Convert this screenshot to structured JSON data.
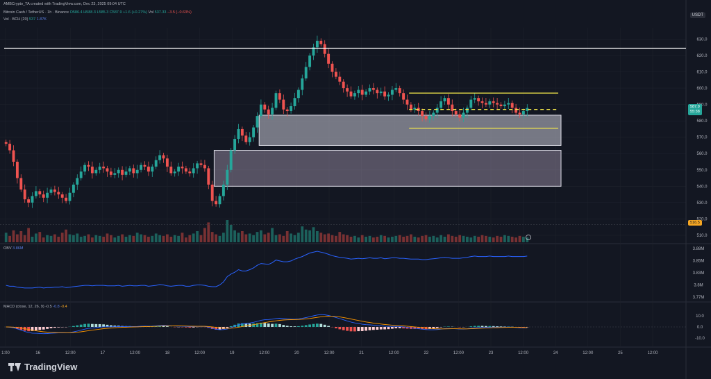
{
  "header": {
    "created_by": "AMBCrypto_TA created with TradingView.com, Dec 23, 2025 09:04 UTC",
    "symbol": "Bitcoin Cash / TetherUS · 1h · Binance",
    "open": "O586.4",
    "high": "H588.3",
    "low": "L585.3",
    "close": "C587.9",
    "change": "+1.6 (+0.27%)",
    "vol_label": "Vol",
    "vol_value": "537.33",
    "vol_change": "−3.5 (−0.63%)",
    "vol_indicator": "Vol · BCH (20)",
    "vol_v1": "537",
    "vol_v2": "1.87K",
    "currency": "USDT"
  },
  "price_badge": {
    "price": "587.9",
    "countdown": "55:38"
  },
  "low_badge": "516.5",
  "obv_label": "OBV",
  "obv_value": "3.86M",
  "macd_label": "MACD (close, 12, 26, 9)",
  "macd_v1": "-0.5",
  "macd_v2": "-0.8",
  "macd_v3": "-0.4",
  "brand": "TradingView",
  "colors": {
    "up": "#26a69a",
    "down": "#ef5350",
    "background": "#131722",
    "gridline": "#1e222d",
    "yellow": "#f5e94a",
    "white_line": "#ffffff",
    "zone": "#b3b3c4",
    "obv": "#2962ff",
    "macd": "#2962ff",
    "signal": "#ff9800"
  },
  "chart_data": {
    "type": "candlestick",
    "price_axis": {
      "ticks": [
        510,
        520,
        530,
        540,
        550,
        560,
        570,
        580,
        590,
        600,
        610,
        620,
        630
      ],
      "ylim": [
        507,
        637
      ]
    },
    "obv_axis": {
      "ticks": [
        "3.88M",
        "3.85M",
        "3.83M",
        "3.8M",
        "3.77M"
      ]
    },
    "macd_axis": {
      "ticks": [
        "10.0",
        "0.0",
        "-10.0"
      ]
    },
    "time_axis": [
      "1:00",
      "16",
      "12:00",
      "17",
      "12:00",
      "18",
      "12:00",
      "19",
      "12:00",
      "20",
      "12:00",
      "21",
      "12:00",
      "22",
      "12:00",
      "23",
      "12:00",
      "24",
      "12:00",
      "25",
      "12:00"
    ],
    "series_close": [
      566.0,
      562.0,
      555.0,
      545.0,
      538.0,
      532.0,
      530.0,
      534.0,
      537.0,
      535.0,
      533.0,
      536.0,
      538.0,
      536.5,
      535.0,
      533.0,
      531.0,
      536.0,
      541.0,
      545.0,
      549.0,
      553.0,
      552.0,
      548.0,
      550.0,
      552.0,
      551.0,
      549.0,
      547.0,
      548.0,
      550.0,
      547.0,
      549.0,
      551.0,
      548.0,
      550.0,
      553.0,
      552.0,
      549.0,
      552.0,
      556.0,
      559.0,
      557.0,
      552.0,
      548.0,
      549.0,
      552.0,
      551.0,
      549.0,
      548.0,
      551.0,
      554.0,
      553.0,
      551.0,
      541.0,
      531.0,
      529.0,
      534.0,
      541.0,
      550.0,
      562.0,
      569.0,
      575.0,
      571.0,
      567.0,
      570.0,
      576.0,
      583.0,
      590.0,
      587.0,
      584.0,
      588.0,
      597.0,
      593.0,
      587.0,
      586.0,
      589.0,
      594.0,
      599.0,
      606.0,
      613.0,
      620.0,
      625.0,
      629.0,
      627.0,
      621.0,
      615.0,
      610.0,
      607.0,
      604.0,
      600.0,
      598.0,
      595.0,
      597.0,
      599.0,
      596.0,
      598.0,
      600.0,
      599.0,
      597.0,
      598.0,
      595.0,
      596.0,
      599.0,
      600.0,
      597.0,
      593.0,
      590.0,
      587.0,
      588.0,
      586.0,
      583.0,
      581.0,
      583.0,
      585.0,
      588.0,
      592.0,
      594.0,
      590.0,
      586.0,
      584.0,
      582.0,
      585.0,
      588.0,
      593.0,
      594.0,
      592.0,
      591.0,
      590.0,
      592.0,
      591.0,
      590.0,
      589.0,
      590.0,
      591.0,
      588.0,
      585.0,
      584.0,
      586.0,
      587.9
    ],
    "series_volume": [
      12,
      8,
      15,
      10,
      14,
      9,
      18,
      7,
      11,
      13,
      6,
      9,
      8,
      10,
      7,
      12,
      16,
      10,
      9,
      11,
      7,
      8,
      10,
      6,
      9,
      8,
      7,
      11,
      9,
      6,
      8,
      10,
      7,
      9,
      8,
      12,
      10,
      9,
      7,
      8,
      11,
      9,
      8,
      10,
      7,
      9,
      8,
      12,
      6,
      9,
      11,
      14,
      9,
      18,
      25,
      13,
      10,
      8,
      12,
      28,
      22,
      15,
      12,
      14,
      10,
      11,
      9,
      13,
      15,
      10,
      12,
      18,
      9,
      10,
      8,
      14,
      11,
      9,
      12,
      20,
      16,
      15,
      19,
      14,
      12,
      10,
      11,
      9,
      8,
      13,
      10,
      9,
      7,
      8,
      6,
      9,
      7,
      8,
      6,
      7,
      9,
      8,
      6,
      7,
      8,
      9,
      7,
      8,
      10,
      7,
      6,
      8,
      9,
      7,
      8,
      6,
      9,
      7,
      10,
      8,
      7,
      9,
      8,
      7,
      6,
      8,
      7,
      9,
      8,
      7,
      6,
      8,
      7,
      9,
      8,
      7,
      6,
      8,
      7,
      6
    ],
    "series_obv": [
      0.22,
      0.2,
      0.2,
      0.18,
      0.17,
      0.16,
      0.16,
      0.16,
      0.17,
      0.18,
      0.16,
      0.17,
      0.17,
      0.18,
      0.18,
      0.19,
      0.17,
      0.18,
      0.19,
      0.2,
      0.21,
      0.22,
      0.22,
      0.21,
      0.22,
      0.22,
      0.22,
      0.21,
      0.21,
      0.21,
      0.22,
      0.2,
      0.21,
      0.22,
      0.21,
      0.21,
      0.22,
      0.22,
      0.2,
      0.21,
      0.22,
      0.24,
      0.23,
      0.21,
      0.2,
      0.21,
      0.22,
      0.22,
      0.2,
      0.2,
      0.22,
      0.23,
      0.23,
      0.22,
      0.2,
      0.19,
      0.19,
      0.23,
      0.3,
      0.42,
      0.48,
      0.52,
      0.58,
      0.55,
      0.55,
      0.58,
      0.62,
      0.68,
      0.72,
      0.71,
      0.7,
      0.74,
      0.8,
      0.78,
      0.76,
      0.76,
      0.78,
      0.82,
      0.85,
      0.88,
      0.92,
      0.96,
      0.98,
      1.0,
      0.98,
      0.96,
      0.93,
      0.9,
      0.88,
      0.86,
      0.85,
      0.84,
      0.82,
      0.83,
      0.84,
      0.83,
      0.84,
      0.85,
      0.84,
      0.84,
      0.85,
      0.83,
      0.84,
      0.85,
      0.85,
      0.84,
      0.84,
      0.83,
      0.82,
      0.82,
      0.82,
      0.81,
      0.81,
      0.82,
      0.83,
      0.84,
      0.85,
      0.86,
      0.85,
      0.84,
      0.84,
      0.84,
      0.85,
      0.86,
      0.88,
      0.89,
      0.88,
      0.88,
      0.88,
      0.89,
      0.88,
      0.88,
      0.88,
      0.88,
      0.89,
      0.88,
      0.88,
      0.88,
      0.88,
      0.89
    ],
    "markers": {
      "white_line": 624.5,
      "yellow_top": 597,
      "yellow_mid": 587,
      "yellow_bot": 575.5,
      "zones": [
        {
          "y1": 583.5,
          "y2": 565,
          "start": 68
        },
        {
          "y1": 562,
          "y2": 540,
          "start": 56
        }
      ]
    }
  }
}
